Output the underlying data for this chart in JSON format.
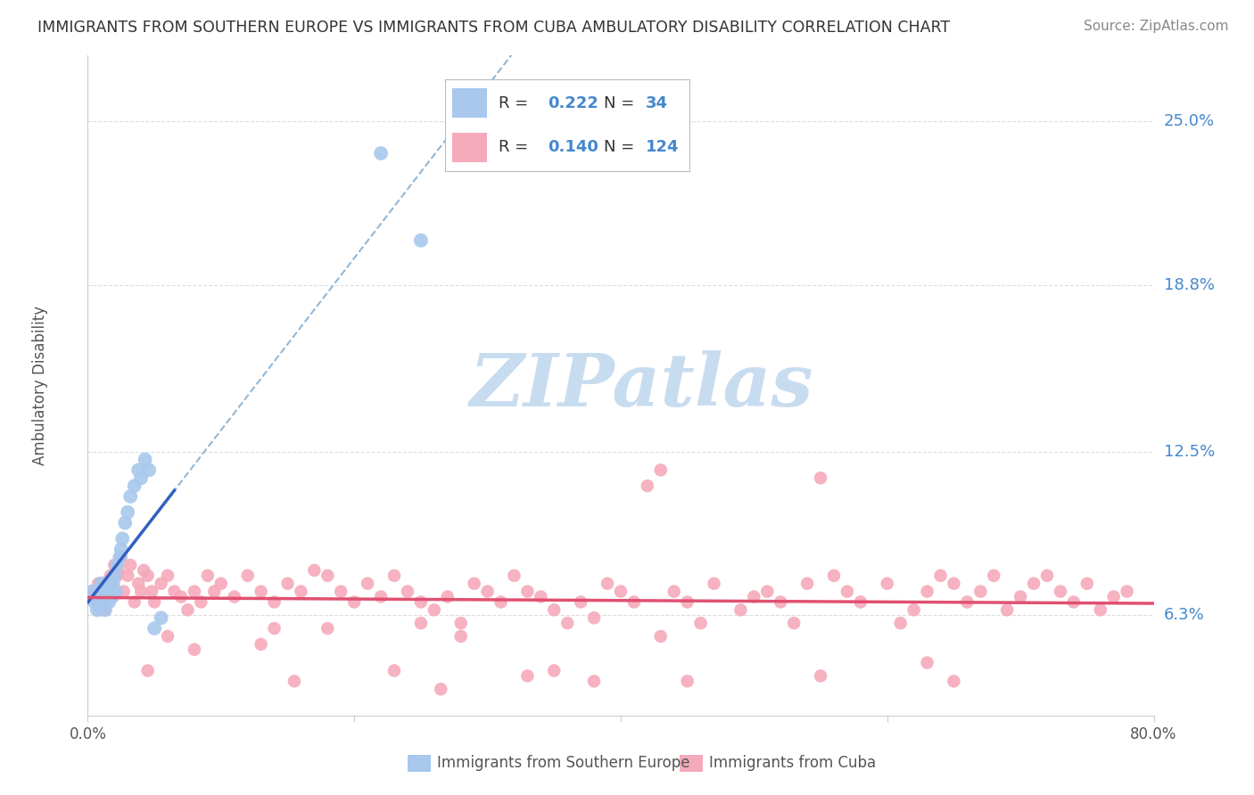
{
  "title": "IMMIGRANTS FROM SOUTHERN EUROPE VS IMMIGRANTS FROM CUBA AMBULATORY DISABILITY CORRELATION CHART",
  "source": "Source: ZipAtlas.com",
  "ylabel": "Ambulatory Disability",
  "y_ticks": [
    0.063,
    0.125,
    0.188,
    0.25
  ],
  "y_tick_labels": [
    "6.3%",
    "12.5%",
    "18.8%",
    "25.0%"
  ],
  "xlim": [
    0.0,
    0.8
  ],
  "ylim": [
    0.025,
    0.275
  ],
  "color_blue": "#A8C8ED",
  "color_pink": "#F5AABB",
  "color_blue_line": "#3060C0",
  "color_pink_line": "#E05070",
  "color_blue_dashed": "#90B8D8",
  "color_grid": "#DDDDDD",
  "color_axis_label": "#4488CC",
  "watermark_color": "#C8DCF0",
  "blue_x": [
    0.003,
    0.005,
    0.006,
    0.007,
    0.008,
    0.009,
    0.01,
    0.01,
    0.011,
    0.012,
    0.013,
    0.014,
    0.015,
    0.016,
    0.018,
    0.019,
    0.02,
    0.021,
    0.022,
    0.024,
    0.025,
    0.026,
    0.028,
    0.03,
    0.032,
    0.035,
    0.038,
    0.04,
    0.043,
    0.046,
    0.05,
    0.055,
    0.22,
    0.25
  ],
  "blue_y": [
    0.072,
    0.068,
    0.07,
    0.065,
    0.068,
    0.072,
    0.07,
    0.075,
    0.073,
    0.068,
    0.065,
    0.072,
    0.075,
    0.068,
    0.07,
    0.075,
    0.078,
    0.072,
    0.082,
    0.085,
    0.088,
    0.092,
    0.098,
    0.102,
    0.108,
    0.112,
    0.118,
    0.115,
    0.122,
    0.118,
    0.058,
    0.062,
    0.238,
    0.205
  ],
  "pink_x": [
    0.003,
    0.005,
    0.007,
    0.008,
    0.009,
    0.01,
    0.011,
    0.012,
    0.013,
    0.014,
    0.015,
    0.016,
    0.017,
    0.018,
    0.019,
    0.02,
    0.022,
    0.023,
    0.025,
    0.027,
    0.03,
    0.032,
    0.035,
    0.038,
    0.04,
    0.042,
    0.045,
    0.048,
    0.05,
    0.055,
    0.06,
    0.065,
    0.07,
    0.075,
    0.08,
    0.085,
    0.09,
    0.095,
    0.1,
    0.11,
    0.12,
    0.13,
    0.14,
    0.15,
    0.16,
    0.17,
    0.18,
    0.19,
    0.2,
    0.21,
    0.22,
    0.23,
    0.24,
    0.25,
    0.26,
    0.27,
    0.28,
    0.29,
    0.3,
    0.31,
    0.32,
    0.33,
    0.34,
    0.35,
    0.36,
    0.37,
    0.38,
    0.39,
    0.4,
    0.41,
    0.42,
    0.43,
    0.44,
    0.45,
    0.46,
    0.47,
    0.49,
    0.5,
    0.51,
    0.52,
    0.54,
    0.55,
    0.56,
    0.57,
    0.58,
    0.6,
    0.61,
    0.62,
    0.63,
    0.64,
    0.65,
    0.66,
    0.67,
    0.68,
    0.69,
    0.7,
    0.71,
    0.72,
    0.73,
    0.74,
    0.75,
    0.76,
    0.77,
    0.78,
    0.38,
    0.28,
    0.18,
    0.08,
    0.13,
    0.43,
    0.53,
    0.63,
    0.33,
    0.23,
    0.06,
    0.14,
    0.25,
    0.35,
    0.45,
    0.55,
    0.65,
    0.045,
    0.155,
    0.265
  ],
  "pink_y": [
    0.07,
    0.072,
    0.068,
    0.075,
    0.065,
    0.072,
    0.07,
    0.068,
    0.065,
    0.073,
    0.076,
    0.072,
    0.078,
    0.075,
    0.07,
    0.082,
    0.078,
    0.08,
    0.085,
    0.072,
    0.078,
    0.082,
    0.068,
    0.075,
    0.072,
    0.08,
    0.078,
    0.072,
    0.068,
    0.075,
    0.078,
    0.072,
    0.07,
    0.065,
    0.072,
    0.068,
    0.078,
    0.072,
    0.075,
    0.07,
    0.078,
    0.072,
    0.068,
    0.075,
    0.072,
    0.08,
    0.078,
    0.072,
    0.068,
    0.075,
    0.07,
    0.078,
    0.072,
    0.068,
    0.065,
    0.07,
    0.06,
    0.075,
    0.072,
    0.068,
    0.078,
    0.072,
    0.07,
    0.065,
    0.06,
    0.068,
    0.038,
    0.075,
    0.072,
    0.068,
    0.112,
    0.118,
    0.072,
    0.068,
    0.06,
    0.075,
    0.065,
    0.07,
    0.072,
    0.068,
    0.075,
    0.115,
    0.078,
    0.072,
    0.068,
    0.075,
    0.06,
    0.065,
    0.072,
    0.078,
    0.075,
    0.068,
    0.072,
    0.078,
    0.065,
    0.07,
    0.075,
    0.078,
    0.072,
    0.068,
    0.075,
    0.065,
    0.07,
    0.072,
    0.062,
    0.055,
    0.058,
    0.05,
    0.052,
    0.055,
    0.06,
    0.045,
    0.04,
    0.042,
    0.055,
    0.058,
    0.06,
    0.042,
    0.038,
    0.04,
    0.038,
    0.042,
    0.038,
    0.035
  ],
  "blue_line_x_start": 0.0,
  "blue_line_x_solid_end": 0.065,
  "blue_line_x_end": 0.8,
  "pink_line_x_start": 0.0,
  "pink_line_x_end": 0.8,
  "legend_text_color": "#4488CC",
  "legend_label_color": "#333333",
  "bottom_label_blue": "Immigrants from Southern Europe",
  "bottom_label_pink": "Immigrants from Cuba"
}
